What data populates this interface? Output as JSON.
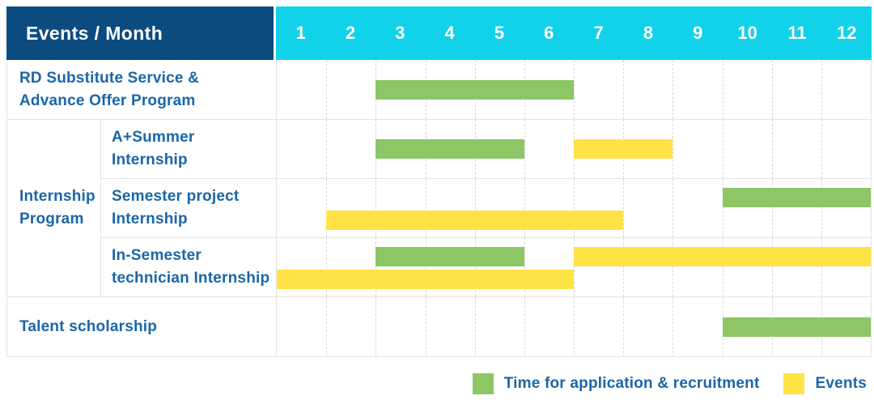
{
  "header": {
    "label_column": "Events / Month",
    "months": [
      "1",
      "2",
      "3",
      "4",
      "5",
      "6",
      "7",
      "8",
      "9",
      "10",
      "11",
      "12"
    ]
  },
  "group": {
    "label": "Internship Program",
    "lines": [
      "Internship",
      "Program"
    ]
  },
  "legend": [
    {
      "swatch": "green",
      "label": "Time for application & recruitment"
    },
    {
      "swatch": "yellow",
      "label": "Events"
    }
  ],
  "colors": {
    "header_bg": "#0c4b80",
    "months_bg": "#12d2ea",
    "green": "#8cc665",
    "yellow": "#ffe345",
    "label_text": "#1a66a9",
    "grid_line": "#d9d9d9",
    "row_border": "#e4e4e4"
  },
  "chart_data": {
    "type": "gantt",
    "title": "Events / Month",
    "x_unit": "month",
    "x_range": [
      1,
      12
    ],
    "x_ticks": [
      "1",
      "2",
      "3",
      "4",
      "5",
      "6",
      "7",
      "8",
      "9",
      "10",
      "11",
      "12"
    ],
    "legend_position": "bottom-right",
    "series_meaning": {
      "green": "Time for application & recruitment",
      "yellow": "Events"
    },
    "rows": [
      {
        "group": null,
        "label": "RD Substitute Service & Advance Offer Program",
        "label_lines": [
          "RD Substitute Service &",
          "Advance Offer Program"
        ],
        "bars": [
          {
            "color": "green",
            "start_month": 3,
            "end_month": 6,
            "line": "center"
          }
        ]
      },
      {
        "group": "Internship Program",
        "label": "A+Summer Internship",
        "label_lines": [
          "A+Summer",
          "Internship"
        ],
        "bars": [
          {
            "color": "green",
            "start_month": 3,
            "end_month": 5,
            "line": "center"
          },
          {
            "color": "yellow",
            "start_month": 7,
            "end_month": 8,
            "line": "center"
          }
        ]
      },
      {
        "group": "Internship Program",
        "label": "Semester project Internship",
        "label_lines": [
          "Semester project",
          "Internship"
        ],
        "bars": [
          {
            "color": "green",
            "start_month": 10,
            "end_month": 12,
            "line": "upper"
          },
          {
            "color": "yellow",
            "start_month": 2,
            "end_month": 7,
            "line": "lower"
          }
        ]
      },
      {
        "group": "Internship Program",
        "label": "In-Semester technician Internship",
        "label_lines": [
          "In-Semester",
          "technician Internship"
        ],
        "bars": [
          {
            "color": "green",
            "start_month": 3,
            "end_month": 5,
            "line": "upper"
          },
          {
            "color": "yellow",
            "start_month": 7,
            "end_month": 12,
            "line": "upper"
          },
          {
            "color": "yellow",
            "start_month": 1,
            "end_month": 6,
            "line": "lower"
          }
        ]
      },
      {
        "group": null,
        "label": "Talent scholarship",
        "label_lines": [
          "Talent scholarship"
        ],
        "bars": [
          {
            "color": "green",
            "start_month": 10,
            "end_month": 12,
            "line": "center"
          }
        ]
      }
    ]
  }
}
